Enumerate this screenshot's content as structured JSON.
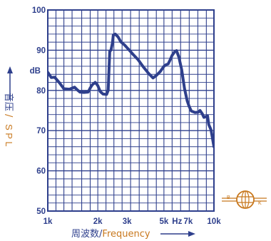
{
  "chart_data": {
    "type": "line",
    "xscale": "log",
    "ylim": [
      50,
      100
    ],
    "xlim": [
      1000,
      10000
    ],
    "y_ticks": [
      {
        "value": 100,
        "label": "100"
      },
      {
        "value": 90,
        "label": "90"
      },
      {
        "value": 80,
        "label": "80"
      },
      {
        "value": 70,
        "label": "70"
      },
      {
        "value": 60,
        "label": "60"
      },
      {
        "value": 50,
        "label": "50"
      }
    ],
    "y_unit": "dB",
    "x_ticks": [
      {
        "value": 1000,
        "label": "1k"
      },
      {
        "value": 2000,
        "label": "2k"
      },
      {
        "value": 3000,
        "label": "3k"
      },
      {
        "value": 5000,
        "label": "5k"
      },
      {
        "value": 6000,
        "label": "Hz"
      },
      {
        "value": 7000,
        "label": "7k"
      },
      {
        "value": 10000,
        "label": "10k"
      }
    ],
    "ylabel": {
      "cn": "音压",
      "sep": "/",
      "en": "S P L"
    },
    "xlabel": {
      "cn": "周波数",
      "sep": "/",
      "en": "Frequency"
    },
    "grid": true,
    "series": [
      {
        "color": "#2e3f8c",
        "points": [
          [
            1000,
            84.5
          ],
          [
            1050,
            83.2
          ],
          [
            1100,
            83.3
          ],
          [
            1180,
            81.8
          ],
          [
            1250,
            80.4
          ],
          [
            1350,
            80.3
          ],
          [
            1450,
            80.8
          ],
          [
            1500,
            80.2
          ],
          [
            1560,
            79.6
          ],
          [
            1650,
            79.5
          ],
          [
            1750,
            79.6
          ],
          [
            1800,
            80.6
          ],
          [
            1850,
            81.4
          ],
          [
            1930,
            82.0
          ],
          [
            2000,
            81.2
          ],
          [
            2070,
            79.7
          ],
          [
            2150,
            79.1
          ],
          [
            2260,
            79.0
          ],
          [
            2310,
            80.0
          ],
          [
            2360,
            89.8
          ],
          [
            2400,
            90.0
          ],
          [
            2450,
            91.8
          ],
          [
            2480,
            93.8
          ],
          [
            2550,
            94.0
          ],
          [
            2650,
            93.3
          ],
          [
            2750,
            92.1
          ],
          [
            2900,
            91.3
          ],
          [
            3050,
            90.3
          ],
          [
            3250,
            89.0
          ],
          [
            3500,
            87.6
          ],
          [
            3750,
            85.9
          ],
          [
            4050,
            84.2
          ],
          [
            4300,
            83.1
          ],
          [
            4500,
            83.7
          ],
          [
            4750,
            84.7
          ],
          [
            5000,
            86.0
          ],
          [
            5150,
            86.4
          ],
          [
            5300,
            86.6
          ],
          [
            5450,
            87.6
          ],
          [
            5600,
            88.7
          ],
          [
            5800,
            89.6
          ],
          [
            5950,
            89.9
          ],
          [
            6150,
            88.3
          ],
          [
            6400,
            85.1
          ],
          [
            6650,
            80.5
          ],
          [
            6900,
            77.4
          ],
          [
            7100,
            76.0
          ],
          [
            7300,
            74.9
          ],
          [
            7700,
            74.5
          ],
          [
            8050,
            74.6
          ],
          [
            8250,
            75.0
          ],
          [
            8500,
            74.2
          ],
          [
            8700,
            73.3
          ],
          [
            8950,
            73.5
          ],
          [
            9150,
            73.7
          ],
          [
            9300,
            71.5
          ],
          [
            9600,
            70.2
          ],
          [
            10000,
            66.0
          ]
        ]
      }
    ]
  },
  "logo": {
    "left": "B",
    "right": "K"
  }
}
